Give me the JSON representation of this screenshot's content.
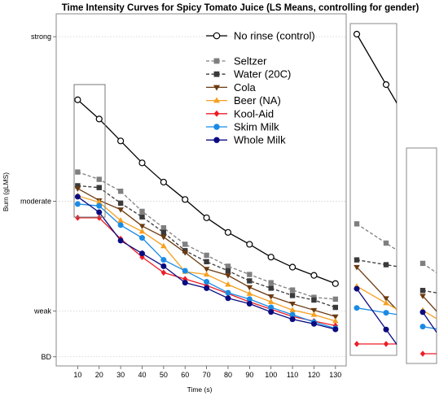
{
  "chart_data": {
    "type": "line",
    "title": "Time Intensity Curves for Spicy Tomato Juice (LS Means, controlling for gender)",
    "xlabel": "Time (s)",
    "ylabel": "Burn (gLMS)",
    "x": [
      10,
      20,
      30,
      40,
      50,
      60,
      70,
      80,
      90,
      100,
      110,
      120,
      130
    ],
    "xlim": [
      0,
      135
    ],
    "ylim": [
      -1,
      37.5
    ],
    "y_ticks": [
      {
        "label": "strong",
        "value": 35
      },
      {
        "label": "moderate",
        "value": 17
      },
      {
        "label": "weak",
        "value": 5
      },
      {
        "label": "BD",
        "value": 0
      }
    ],
    "grid": {
      "horizontal_dotted": true
    },
    "legend_position": "top-right",
    "series": [
      {
        "name": "No rinse (control)",
        "color": "#000000",
        "marker": "circle-open",
        "dashed": false,
        "values": [
          28.1,
          26.0,
          23.6,
          21.2,
          19.1,
          17.2,
          15.2,
          13.6,
          12.3,
          10.9,
          9.8,
          8.9,
          8.0
        ]
      },
      {
        "name": "Seltzer",
        "color": "#7f7f7f",
        "marker": "square",
        "dashed": true,
        "values": [
          20.2,
          19.4,
          18.1,
          15.9,
          14.1,
          12.3,
          11.1,
          9.9,
          9.0,
          8.1,
          7.3,
          6.5,
          6.3
        ]
      },
      {
        "name": "Water (20C)",
        "color": "#3a3a3a",
        "marker": "square",
        "dashed": true,
        "values": [
          18.7,
          18.5,
          16.8,
          15.3,
          13.6,
          11.6,
          10.4,
          9.4,
          8.3,
          7.5,
          6.7,
          6.2,
          5.4
        ]
      },
      {
        "name": "Cola",
        "color": "#6b3a10",
        "marker": "triangle-down",
        "dashed": false,
        "values": [
          18.4,
          17.1,
          16.1,
          14.3,
          13.1,
          11.4,
          9.6,
          8.9,
          7.6,
          6.6,
          5.8,
          5.1,
          4.4
        ]
      },
      {
        "name": "Beer (NA)",
        "color": "#f5a021",
        "marker": "triangle-up",
        "dashed": false,
        "values": [
          17.6,
          16.9,
          14.9,
          13.7,
          12.1,
          9.3,
          9.0,
          7.9,
          6.9,
          6.0,
          5.1,
          4.6,
          3.9
        ]
      },
      {
        "name": "Kool-Aid",
        "color": "#ee1c25",
        "marker": "diamond",
        "dashed": false,
        "values": [
          15.2,
          15.2,
          12.9,
          10.9,
          9.2,
          8.5,
          7.8,
          6.9,
          6.0,
          5.2,
          4.4,
          3.9,
          3.4
        ]
      },
      {
        "name": "Skim Milk",
        "color": "#1a8be5",
        "marker": "circle",
        "dashed": false,
        "values": [
          16.7,
          16.5,
          14.4,
          13.0,
          10.6,
          9.4,
          8.2,
          7.0,
          6.3,
          5.4,
          4.6,
          3.8,
          3.1
        ]
      },
      {
        "name": "Whole Milk",
        "color": "#0b0b80",
        "marker": "circle",
        "dashed": false,
        "values": [
          17.5,
          15.8,
          12.7,
          11.3,
          9.9,
          8.1,
          7.5,
          6.4,
          5.8,
          4.9,
          4.1,
          3.6,
          3.0
        ]
      }
    ]
  }
}
